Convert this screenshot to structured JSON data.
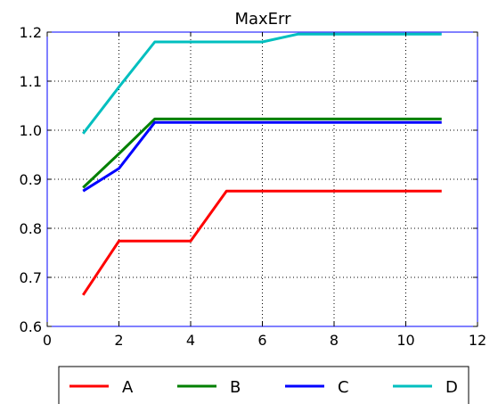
{
  "chart_data": {
    "type": "line",
    "title": "MaxErr",
    "xlabel": "",
    "ylabel": "",
    "xlim": [
      0,
      12
    ],
    "ylim": [
      0.6,
      1.2
    ],
    "xticks": [
      0,
      2,
      4,
      6,
      8,
      10,
      12
    ],
    "yticks": [
      0.6,
      0.7,
      0.8,
      0.9,
      1.0,
      1.1,
      1.2
    ],
    "xtick_labels": [
      "0",
      "2",
      "4",
      "6",
      "8",
      "10",
      "12"
    ],
    "ytick_labels": [
      "0.6",
      "0.7",
      "0.8",
      "0.9",
      "1.0",
      "1.1",
      "1.2"
    ],
    "grid": true,
    "legend_position": "below",
    "series": [
      {
        "name": "A",
        "color": "#ff0000",
        "x": [
          1,
          2,
          3,
          4,
          5,
          6,
          7,
          8,
          9,
          10,
          11
        ],
        "y": [
          0.664,
          0.774,
          0.774,
          0.774,
          0.876,
          0.876,
          0.876,
          0.876,
          0.876,
          0.876,
          0.876
        ]
      },
      {
        "name": "B",
        "color": "#008000",
        "x": [
          1,
          2,
          3,
          4,
          5,
          6,
          7,
          8,
          9,
          10,
          11
        ],
        "y": [
          0.883,
          0.952,
          1.023,
          1.023,
          1.023,
          1.023,
          1.023,
          1.023,
          1.023,
          1.023,
          1.023
        ]
      },
      {
        "name": "C",
        "color": "#0000ff",
        "x": [
          1,
          2,
          3,
          4,
          5,
          6,
          7,
          8,
          9,
          10,
          11
        ],
        "y": [
          0.876,
          0.922,
          1.016,
          1.016,
          1.016,
          1.016,
          1.016,
          1.016,
          1.016,
          1.016,
          1.016
        ]
      },
      {
        "name": "D",
        "color": "#00bfbf",
        "x": [
          1,
          2,
          3,
          4,
          5,
          6,
          7,
          8,
          9,
          10,
          11
        ],
        "y": [
          0.993,
          1.088,
          1.18,
          1.18,
          1.18,
          1.18,
          1.196,
          1.196,
          1.196,
          1.196,
          1.196
        ]
      }
    ]
  }
}
